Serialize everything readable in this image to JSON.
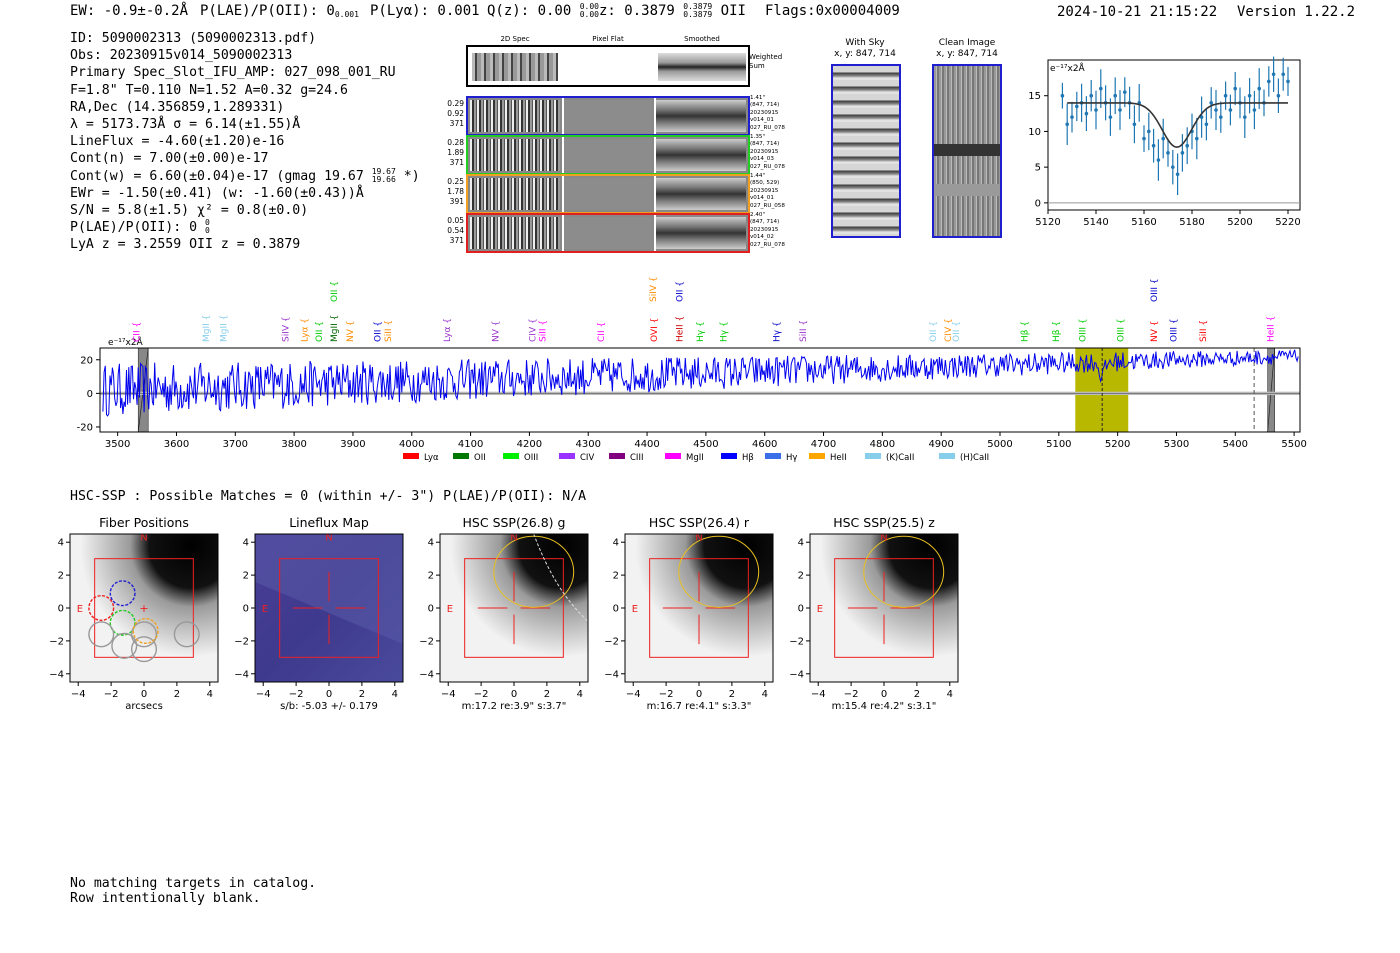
{
  "header": {
    "ew": "EW: -0.9±-0.2Å",
    "plae": "P(LAE)/P(OII): 0",
    "plae_sup": "",
    "plae_sub": "0.001",
    "plya": "P(Lyα): 0.001",
    "qz": "Q(z): 0.00",
    "qz_sup": "0.00",
    "qz_sub": "0.00",
    "z": "z: 0.3879",
    "z_sup": "0.3879",
    "z_sub": "0.3879",
    "z_line": "OII",
    "flags": "Flags:0x00004009",
    "timestamp": "2024-10-21 21:15:22",
    "version": "Version 1.22.2"
  },
  "info": {
    "id": "ID: 5090002313 (5090002313.pdf)",
    "obs": "Obs: 20230915v014_5090002313",
    "primary": "Primary Spec_Slot_IFU_AMP: 027_098_001_RU",
    "params": "F=1.8\"  T=0.110  N=1.52  A=0.32  g=24.6",
    "radec": "RA,Dec (14.356859,1.289331)",
    "lambda": "λ = 5173.73Å  σ = 6.14(±1.55)Å",
    "lineflux": "LineFlux = -4.60(±1.20)e-16",
    "contn": "Cont(n) = 7.00(±0.00)e-17",
    "contw": "Cont(w) = 6.60(±0.04)e-17 (gmag 19.67",
    "contw_sup": "19.67",
    "contw_sub": "19.66",
    "contw_end": "*)",
    "ewr": "EWr = -1.50(±0.41) (w: -1.60(±0.43))Å",
    "sn": "S/N = 5.8(±1.5)  χ² = 0.8(±0.0)",
    "plae2": "P(LAE)/P(OII): 0",
    "plae2_sup": "0",
    "plae2_sub": "0",
    "lyaz": "LyA z = 3.2559  OII z = 0.3879"
  },
  "cutouts": {
    "col_titles": [
      "2D Spec",
      "Pixel Flat",
      "Smoothed"
    ],
    "weighted_sum": "Weighted Sum",
    "rows": [
      {
        "left": [
          "0.29",
          "0.92",
          "371"
        ],
        "right": [
          "1.41\"",
          "(847, 714)",
          "20230915",
          "v014_01",
          "027_RU_078"
        ],
        "color": "#1f1fd0"
      },
      {
        "left": [
          "0.28",
          "1.89",
          "371"
        ],
        "right": [
          "1.35\"",
          "(847, 714)",
          "20230915",
          "v014_03",
          "027_RU_078"
        ],
        "color": "#22cc22"
      },
      {
        "left": [
          "0.25",
          "1.78",
          "391"
        ],
        "right": [
          "1.44\"",
          "(850, 529)",
          "20230915",
          "v014_01",
          "027_RU_058"
        ],
        "color": "#f0a020"
      },
      {
        "left": [
          "0.05",
          "0.54",
          "371"
        ],
        "right": [
          "2.40\"",
          "(847, 714)",
          "20230915",
          "v014_02",
          "027_RU_078"
        ],
        "color": "#e02020"
      }
    ],
    "with_sky": "With Sky",
    "with_sky_xy": "x, y: 847, 714",
    "clean": "Clean Image",
    "clean_xy": "x, y: 847, 714"
  },
  "bottom": {
    "hsc_line": "HSC-SSP : Possible Matches = 0 (within +/- 3\")  P(LAE)/P(OII): N/A",
    "note1": "No matching targets in catalog.",
    "note2": "Row intentionally blank."
  },
  "chart_data": [
    {
      "type": "scatter",
      "name": "line-fit-zoom",
      "ylabel": "e⁻¹⁷x2Å",
      "xlim": [
        5120,
        5225
      ],
      "ylim": [
        -1,
        20
      ],
      "xticks": [
        5120,
        5140,
        5160,
        5180,
        5200,
        5220
      ],
      "yticks": [
        0,
        5,
        10,
        15
      ],
      "fit": {
        "continuum": 14,
        "center": 5173.7,
        "sigma": 6.14,
        "amplitude": -6.2
      },
      "points": [
        [
          5126,
          15
        ],
        [
          5128,
          11
        ],
        [
          5130,
          12
        ],
        [
          5132,
          13.5
        ],
        [
          5134,
          14
        ],
        [
          5136,
          12.5
        ],
        [
          5138,
          15
        ],
        [
          5140,
          13
        ],
        [
          5142,
          16
        ],
        [
          5144,
          14
        ],
        [
          5146,
          12
        ],
        [
          5148,
          15
        ],
        [
          5150,
          13
        ],
        [
          5152,
          15.5
        ],
        [
          5154,
          14
        ],
        [
          5156,
          11
        ],
        [
          5158,
          14
        ],
        [
          5160,
          9
        ],
        [
          5162,
          10
        ],
        [
          5164,
          8
        ],
        [
          5166,
          6
        ],
        [
          5168,
          9
        ],
        [
          5170,
          7
        ],
        [
          5172,
          5
        ],
        [
          5174,
          4
        ],
        [
          5176,
          7
        ],
        [
          5178,
          8
        ],
        [
          5180,
          10
        ],
        [
          5182,
          9
        ],
        [
          5184,
          12
        ],
        [
          5186,
          11
        ],
        [
          5188,
          14
        ],
        [
          5190,
          13
        ],
        [
          5192,
          12
        ],
        [
          5194,
          15
        ],
        [
          5196,
          13
        ],
        [
          5198,
          16
        ],
        [
          5200,
          14
        ],
        [
          5202,
          12
        ],
        [
          5204,
          15
        ],
        [
          5206,
          13
        ],
        [
          5208,
          16
        ],
        [
          5210,
          14
        ],
        [
          5212,
          17
        ],
        [
          5214,
          18
        ],
        [
          5216,
          15
        ],
        [
          5218,
          18
        ],
        [
          5220,
          17
        ]
      ]
    },
    {
      "type": "line",
      "name": "full-spectrum",
      "ylabel": "e⁻¹⁷x2Å",
      "xlim": [
        3470,
        5510
      ],
      "ylim": [
        -23,
        27
      ],
      "xticks": [
        3500,
        3600,
        3700,
        3800,
        3900,
        4000,
        4100,
        4200,
        4300,
        4400,
        4500,
        4600,
        4700,
        4800,
        4900,
        5000,
        5100,
        5200,
        5300,
        5400,
        5500
      ],
      "yticks": [
        -20,
        0,
        20
      ],
      "highlight_range": [
        5128,
        5218
      ],
      "highlight_line": 5173.7,
      "dashed_line": 5432,
      "masked_regions": [
        [
          3535,
          3552
        ],
        [
          5455,
          5467
        ]
      ],
      "emission_lines": [
        {
          "label": "CII",
          "x": 3532,
          "color": "#ff00ff",
          "row": 1
        },
        {
          "label": "MgII",
          "x": 3650,
          "color": "#87ceeb",
          "row": 1
        },
        {
          "label": "MgII",
          "x": 3680,
          "color": "#87ceeb",
          "row": 1
        },
        {
          "label": "SiIV",
          "x": 3785,
          "color": "#9933cc",
          "row": 1
        },
        {
          "label": "Lyα",
          "x": 3818,
          "color": "#ff8c00",
          "row": 1
        },
        {
          "label": "OII",
          "x": 3842,
          "color": "#00cc00",
          "row": 1
        },
        {
          "label": "MgII",
          "x": 3868,
          "color": "#006600",
          "row": 1
        },
        {
          "label": "OII",
          "x": 3868,
          "color": "#00cc00",
          "row": 0
        },
        {
          "label": "NV",
          "x": 3895,
          "color": "#ff8c00",
          "row": 1
        },
        {
          "label": "OII",
          "x": 3942,
          "color": "#0000cc",
          "row": 1
        },
        {
          "label": "SiII",
          "x": 3960,
          "color": "#ff8c00",
          "row": 1
        },
        {
          "label": "Lyα",
          "x": 4060,
          "color": "#9933cc",
          "row": 1
        },
        {
          "label": "NV",
          "x": 4142,
          "color": "#9933cc",
          "row": 1
        },
        {
          "label": "CIV",
          "x": 4205,
          "color": "#9933cc",
          "row": 1
        },
        {
          "label": "SiII",
          "x": 4222,
          "color": "#ff00ff",
          "row": 1
        },
        {
          "label": "CII",
          "x": 4322,
          "color": "#ff00ff",
          "row": 1
        },
        {
          "label": "SiIV",
          "x": 4410,
          "color": "#ff8c00",
          "row": 0
        },
        {
          "label": "OII",
          "x": 4455,
          "color": "#0000cc",
          "row": 0
        },
        {
          "label": "OVI",
          "x": 4412,
          "color": "#ff0000",
          "row": 1
        },
        {
          "label": "HeII",
          "x": 4455,
          "color": "#cc0000",
          "row": 1
        },
        {
          "label": "Hγ",
          "x": 4490,
          "color": "#00cc00",
          "row": 1
        },
        {
          "label": "Hγ",
          "x": 4530,
          "color": "#00cc00",
          "row": 1
        },
        {
          "label": "Hγ",
          "x": 4620,
          "color": "#0000cc",
          "row": 1
        },
        {
          "label": "SiII",
          "x": 4665,
          "color": "#9933cc",
          "row": 1
        },
        {
          "label": "OII",
          "x": 4886,
          "color": "#87ceeb",
          "row": 1
        },
        {
          "label": "CIV",
          "x": 4912,
          "color": "#ff8c00",
          "row": 1
        },
        {
          "label": "OII",
          "x": 4925,
          "color": "#87ceeb",
          "row": 1
        },
        {
          "label": "Hβ",
          "x": 5042,
          "color": "#00cc00",
          "row": 1
        },
        {
          "label": "Hβ",
          "x": 5095,
          "color": "#00cc00",
          "row": 1
        },
        {
          "label": "OIII",
          "x": 5140,
          "color": "#00cc00",
          "row": 1
        },
        {
          "label": "OIII",
          "x": 5205,
          "color": "#00cc00",
          "row": 1
        },
        {
          "label": "NV",
          "x": 5262,
          "color": "#ff0000",
          "row": 1
        },
        {
          "label": "OIII",
          "x": 5262,
          "color": "#0000cc",
          "row": 0
        },
        {
          "label": "OIII",
          "x": 5295,
          "color": "#0000cc",
          "row": 1
        },
        {
          "label": "SiII",
          "x": 5345,
          "color": "#ff0000",
          "row": 1
        },
        {
          "label": "HeII",
          "x": 5460,
          "color": "#ff00ff",
          "row": 1
        }
      ],
      "legend": [
        {
          "label": "Lyα",
          "color": "#ff0000"
        },
        {
          "label": "OII",
          "color": "#007700"
        },
        {
          "label": "OIII",
          "color": "#00ee00"
        },
        {
          "label": "CIV",
          "color": "#9933ff"
        },
        {
          "label": "CIII",
          "color": "#800080"
        },
        {
          "label": "MgII",
          "color": "#ff00ff"
        },
        {
          "label": "Hβ",
          "color": "#0000ff"
        },
        {
          "label": "Hγ",
          "color": "#3a6fe8"
        },
        {
          "label": "HeII",
          "color": "#ffa500"
        },
        {
          "label": "(K)CaII",
          "color": "#87ceeb"
        },
        {
          "label": "(H)CaII",
          "color": "#87ceeb"
        }
      ]
    },
    {
      "type": "heatmap",
      "name": "imaging-panels",
      "xlim": [
        -4.5,
        4.5
      ],
      "ylim": [
        -4.5,
        4.5
      ],
      "ticks": [
        -4,
        -2,
        0,
        2,
        4
      ],
      "panels": [
        {
          "title": "Fiber Positions",
          "xlabel": "arcsecs",
          "kind": "fiber"
        },
        {
          "title": "Lineflux Map",
          "xlabel": "s/b: -5.03 +/- 0.179",
          "kind": "flux"
        },
        {
          "title": "HSC SSP(26.8) g",
          "xlabel": "m:17.2  re:3.9\"  s:3.7\"",
          "kind": "g"
        },
        {
          "title": "HSC SSP(26.4) r",
          "xlabel": "m:16.7  re:4.1\"  s:3.3\"",
          "kind": "r"
        },
        {
          "title": "HSC SSP(25.5) z",
          "xlabel": "m:15.4  re:4.2\"  s:3.1\"",
          "kind": "z"
        }
      ],
      "compass": {
        "north": "N",
        "east": "E"
      }
    }
  ]
}
